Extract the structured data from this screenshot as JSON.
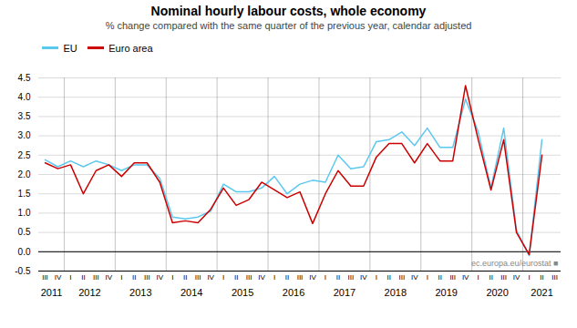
{
  "chart_data": {
    "type": "line",
    "title": "Nominal hourly labour costs, whole economy",
    "subtitle": "% change compared with the same quarter of the previous year, calendar adjusted",
    "categories": [
      "III",
      "IV",
      "I",
      "II",
      "III",
      "IV",
      "I",
      "II",
      "III",
      "IV",
      "I",
      "II",
      "III",
      "IV",
      "I",
      "II",
      "III",
      "IV",
      "I",
      "II",
      "III",
      "IV",
      "I",
      "II",
      "III",
      "IV",
      "I",
      "II",
      "III",
      "IV",
      "I",
      "II",
      "III",
      "IV",
      "I",
      "II",
      "III",
      "IV",
      "I",
      "II",
      "III"
    ],
    "x_groups": [
      {
        "label": "2011",
        "start": 0,
        "end": 2
      },
      {
        "label": "2012",
        "start": 2,
        "end": 6
      },
      {
        "label": "2013",
        "start": 6,
        "end": 10
      },
      {
        "label": "2014",
        "start": 10,
        "end": 14
      },
      {
        "label": "2015",
        "start": 14,
        "end": 18
      },
      {
        "label": "2016",
        "start": 18,
        "end": 22
      },
      {
        "label": "2017",
        "start": 22,
        "end": 26
      },
      {
        "label": "2018",
        "start": 26,
        "end": 30
      },
      {
        "label": "2019",
        "start": 30,
        "end": 34
      },
      {
        "label": "2020",
        "start": 34,
        "end": 38
      },
      {
        "label": "2021",
        "start": 38,
        "end": 41
      }
    ],
    "series": [
      {
        "name": "EU",
        "color": "#5BC8F0",
        "values": [
          2.38,
          2.2,
          2.35,
          2.2,
          2.35,
          2.25,
          2.1,
          2.25,
          2.25,
          1.9,
          0.9,
          0.85,
          0.9,
          1.05,
          1.75,
          1.55,
          1.55,
          1.65,
          1.95,
          1.5,
          1.75,
          1.85,
          1.8,
          2.5,
          2.15,
          2.2,
          2.85,
          2.9,
          3.1,
          2.75,
          3.2,
          2.7,
          2.7,
          3.95,
          3.1,
          1.65,
          3.2,
          0.55,
          -0.1,
          2.9,
          null
        ]
      },
      {
        "name": "Euro area",
        "color": "#CC0000",
        "values": [
          2.3,
          2.15,
          2.25,
          1.5,
          2.1,
          2.25,
          1.95,
          2.3,
          2.3,
          1.8,
          0.75,
          0.8,
          0.75,
          1.1,
          1.65,
          1.2,
          1.35,
          1.8,
          1.6,
          1.4,
          1.55,
          0.73,
          1.5,
          2.1,
          1.7,
          1.7,
          2.45,
          2.8,
          2.8,
          2.3,
          2.8,
          2.35,
          2.35,
          4.3,
          2.9,
          1.6,
          2.9,
          0.5,
          -0.07,
          2.5,
          null
        ]
      }
    ],
    "ylim": [
      -0.5,
      4.5
    ],
    "yticks": [
      -0.5,
      {
        "value": 0,
        "label": "0.0"
      },
      0.5,
      {
        "value": 1,
        "label": "1.0"
      },
      1.5,
      {
        "value": 2,
        "label": "2.0"
      },
      2.5,
      {
        "value": 3,
        "label": "3.0"
      },
      3.5,
      {
        "value": 4,
        "label": "4.0"
      },
      4.5
    ],
    "grid": true,
    "legend": "upper left",
    "annotations": [
      "ec.europa.eu/eurostat ■"
    ]
  }
}
